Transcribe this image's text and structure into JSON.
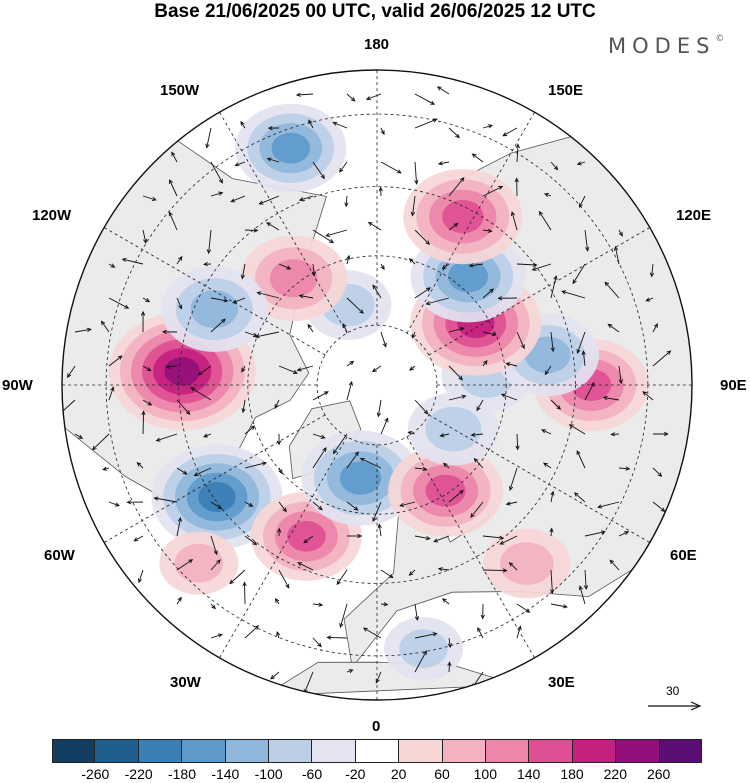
{
  "title": "Base 21/06/2025 00 UTC, valid 26/06/2025 12 UTC",
  "logo": {
    "text": "MODES",
    "mark": "©"
  },
  "longitude_labels": {
    "top": "180",
    "top_left": "150W",
    "top_right": "150E",
    "upper_left": "120W",
    "upper_right": "120E",
    "left": "90W",
    "right": "90E",
    "lower_left": "60W",
    "lower_right": "60E",
    "bottom_left": "30W",
    "bottom_right": "30E",
    "bottom": "0"
  },
  "reference_vector": {
    "label": "30",
    "icon": "arrow-right-icon"
  },
  "colorbar": {
    "labels": [
      "-260",
      "-220",
      "-180",
      "-140",
      "-100",
      "-60",
      "-20",
      "20",
      "60",
      "100",
      "140",
      "180",
      "220",
      "260"
    ],
    "colors": [
      "#123e62",
      "#1f5f8f",
      "#3a7fb6",
      "#5d9acb",
      "#8fb6db",
      "#bccfe7",
      "#e3e3f1",
      "#ffffff",
      "#f7d6d6",
      "#f2b2bf",
      "#ec86aa",
      "#de4f93",
      "#c4207f",
      "#93107b",
      "#5a0d73"
    ]
  },
  "anomaly_centers": [
    {
      "lon": -94,
      "r": 0.62,
      "value": 230
    },
    {
      "lon": -55,
      "r": 0.62,
      "value": -190
    },
    {
      "lon": -25,
      "r": 0.53,
      "value": 140
    },
    {
      "lon": -10,
      "r": 0.3,
      "value": -160
    },
    {
      "lon": 33,
      "r": 0.4,
      "value": 150
    },
    {
      "lon": 60,
      "r": 0.28,
      "value": -90
    },
    {
      "lon": 90,
      "r": 0.68,
      "value": 150
    },
    {
      "lon": 95,
      "r": 0.35,
      "value": -90
    },
    {
      "lon": 100,
      "r": 0.55,
      "value": -120
    },
    {
      "lon": 122,
      "r": 0.37,
      "value": 190
    },
    {
      "lon": 140,
      "r": 0.45,
      "value": -150
    },
    {
      "lon": 153,
      "r": 0.6,
      "value": 160
    },
    {
      "lon": -160,
      "r": 0.27,
      "value": -80
    },
    {
      "lon": -142,
      "r": 0.43,
      "value": 130
    },
    {
      "lon": -160,
      "r": 0.8,
      "value": -140
    },
    {
      "lon": -115,
      "r": 0.57,
      "value": -130
    },
    {
      "lon": 40,
      "r": 0.74,
      "value": 80
    },
    {
      "lon": -45,
      "r": 0.8,
      "value": 60
    },
    {
      "lon": 10,
      "r": 0.85,
      "value": -60
    }
  ]
}
